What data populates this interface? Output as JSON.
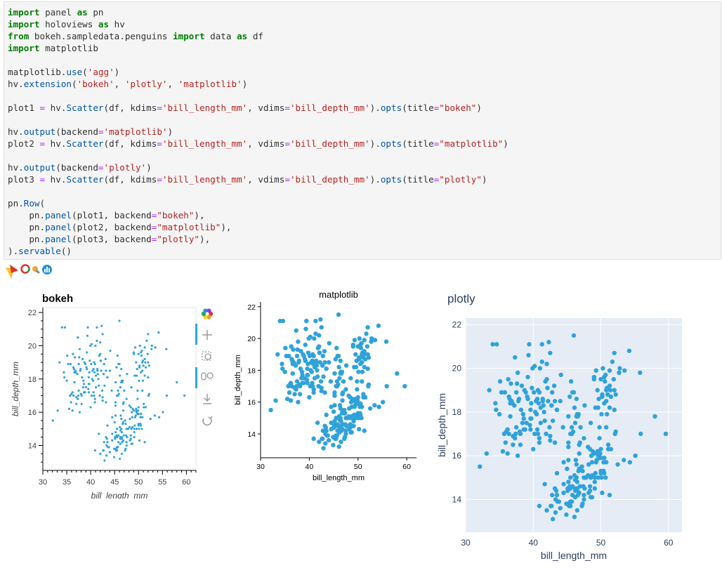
{
  "code_lines": [
    [
      [
        "kw",
        "import"
      ],
      [
        "t",
        " panel "
      ],
      [
        "kw",
        "as"
      ],
      [
        "t",
        " pn"
      ]
    ],
    [
      [
        "kw",
        "import"
      ],
      [
        "t",
        " holoviews "
      ],
      [
        "kw",
        "as"
      ],
      [
        "t",
        " hv"
      ]
    ],
    [
      [
        "kw",
        "from"
      ],
      [
        "t",
        " bokeh.sampledata.penguins "
      ],
      [
        "kw",
        "import"
      ],
      [
        "t",
        " data "
      ],
      [
        "kw",
        "as"
      ],
      [
        "t",
        " df"
      ]
    ],
    [
      [
        "kw",
        "import"
      ],
      [
        "t",
        " matplotlib"
      ]
    ],
    [],
    [
      [
        "t",
        "matplotlib."
      ],
      [
        "fn",
        "use"
      ],
      [
        "t",
        "("
      ],
      [
        "str",
        "'agg'"
      ],
      [
        "t",
        ")"
      ]
    ],
    [
      [
        "t",
        "hv."
      ],
      [
        "fn",
        "extension"
      ],
      [
        "t",
        "("
      ],
      [
        "str",
        "'bokeh'"
      ],
      [
        "t",
        ", "
      ],
      [
        "str",
        "'plotly'"
      ],
      [
        "t",
        ", "
      ],
      [
        "str",
        "'matplotlib'"
      ],
      [
        "t",
        ")"
      ]
    ],
    [],
    [
      [
        "t",
        "plot1 "
      ],
      [
        "op",
        "="
      ],
      [
        "t",
        " hv."
      ],
      [
        "fn",
        "Scatter"
      ],
      [
        "t",
        "(df, kdims"
      ],
      [
        "op",
        "="
      ],
      [
        "str",
        "'bill_length_mm'"
      ],
      [
        "t",
        ", vdims"
      ],
      [
        "op",
        "="
      ],
      [
        "str",
        "'bill_depth_mm'"
      ],
      [
        "t",
        ")."
      ],
      [
        "fn",
        "opts"
      ],
      [
        "t",
        "(title"
      ],
      [
        "op",
        "="
      ],
      [
        "str",
        "\"bokeh\""
      ],
      [
        "t",
        ")"
      ]
    ],
    [],
    [
      [
        "t",
        "hv."
      ],
      [
        "fn",
        "output"
      ],
      [
        "t",
        "(backend"
      ],
      [
        "op",
        "="
      ],
      [
        "str",
        "'matplotlib'"
      ],
      [
        "t",
        ")"
      ]
    ],
    [
      [
        "t",
        "plot2 "
      ],
      [
        "op",
        "="
      ],
      [
        "t",
        " hv."
      ],
      [
        "fn",
        "Scatter"
      ],
      [
        "t",
        "(df, kdims"
      ],
      [
        "op",
        "="
      ],
      [
        "str",
        "'bill_length_mm'"
      ],
      [
        "t",
        ", vdims"
      ],
      [
        "op",
        "="
      ],
      [
        "str",
        "'bill_depth_mm'"
      ],
      [
        "t",
        ")."
      ],
      [
        "fn",
        "opts"
      ],
      [
        "t",
        "(title"
      ],
      [
        "op",
        "="
      ],
      [
        "str",
        "\"matplotlib\""
      ],
      [
        "t",
        ")"
      ]
    ],
    [],
    [
      [
        "t",
        "hv."
      ],
      [
        "fn",
        "output"
      ],
      [
        "t",
        "(backend"
      ],
      [
        "op",
        "="
      ],
      [
        "str",
        "'plotly'"
      ],
      [
        "t",
        ")"
      ]
    ],
    [
      [
        "t",
        "plot3 "
      ],
      [
        "op",
        "="
      ],
      [
        "t",
        " hv."
      ],
      [
        "fn",
        "Scatter"
      ],
      [
        "t",
        "(df, kdims"
      ],
      [
        "op",
        "="
      ],
      [
        "str",
        "'bill_length_mm'"
      ],
      [
        "t",
        ", vdims"
      ],
      [
        "op",
        "="
      ],
      [
        "str",
        "'bill_depth_mm'"
      ],
      [
        "t",
        ")."
      ],
      [
        "fn",
        "opts"
      ],
      [
        "t",
        "(title"
      ],
      [
        "op",
        "="
      ],
      [
        "str",
        "\"plotly\""
      ],
      [
        "t",
        ")"
      ]
    ],
    [],
    [
      [
        "t",
        "pn."
      ],
      [
        "fn",
        "Row"
      ],
      [
        "t",
        "("
      ]
    ],
    [
      [
        "t",
        "    pn."
      ],
      [
        "fn",
        "panel"
      ],
      [
        "t",
        "(plot1, backend"
      ],
      [
        "op",
        "="
      ],
      [
        "str",
        "\"bokeh\""
      ],
      [
        "t",
        "),"
      ]
    ],
    [
      [
        "t",
        "    pn."
      ],
      [
        "fn",
        "panel"
      ],
      [
        "t",
        "(plot2, backend"
      ],
      [
        "op",
        "="
      ],
      [
        "str",
        "\"matplotlib\""
      ],
      [
        "t",
        "),"
      ]
    ],
    [
      [
        "t",
        "    pn."
      ],
      [
        "fn",
        "panel"
      ],
      [
        "t",
        "(plot3, backend"
      ],
      [
        "op",
        "="
      ],
      [
        "str",
        "\"plotly\""
      ],
      [
        "t",
        "),"
      ]
    ],
    [
      [
        "t",
        ")."
      ],
      [
        "fn",
        "servable"
      ],
      [
        "t",
        "()"
      ]
    ]
  ],
  "colors": {
    "keyword": "#008000",
    "function": "#0055aa",
    "string": "#ba2121",
    "operator": "#aa22ff",
    "bokeh_point": "#30a2da",
    "plotly_bg": "#e5ecf6",
    "plotly_text": "#2a3f5f"
  },
  "bokeh_toolbar": {
    "icons": [
      "bokeh-logo-icon",
      "pan-icon",
      "box-zoom-icon",
      "wheel-zoom-icon",
      "save-icon",
      "reset-icon"
    ]
  },
  "chart_data": [
    {
      "type": "scatter",
      "backend": "bokeh",
      "title": "bokeh",
      "xlabel": "bill_length_mm",
      "ylabel": "bill_depth_mm",
      "xlim": [
        30,
        62
      ],
      "ylim": [
        12.5,
        22.3
      ],
      "xticks": [
        30,
        35,
        40,
        45,
        50,
        55,
        60
      ],
      "yticks": [
        14,
        16,
        18,
        20,
        22
      ],
      "grid": false
    },
    {
      "type": "scatter",
      "backend": "matplotlib",
      "title": "matplotlib",
      "xlabel": "bill_length_mm",
      "ylabel": "bill_depth_mm",
      "xlim": [
        30,
        62
      ],
      "ylim": [
        12.5,
        22.3
      ],
      "xticks": [
        30,
        40,
        50,
        60
      ],
      "yticks": [
        14,
        16,
        18,
        20,
        22
      ],
      "grid": false
    },
    {
      "type": "scatter",
      "backend": "plotly",
      "title": "plotly",
      "xlabel": "bill_length_mm",
      "ylabel": "bill_depth_mm",
      "xlim": [
        30,
        62
      ],
      "ylim": [
        12.5,
        22.3
      ],
      "xticks": [
        30,
        40,
        50,
        60
      ],
      "yticks": [
        14,
        16,
        18,
        20,
        22
      ],
      "grid": true
    }
  ],
  "points": [
    [
      34.0,
      21.1
    ],
    [
      35.8,
      18.9
    ],
    [
      36.5,
      18.6
    ],
    [
      36.9,
      18.4
    ],
    [
      37.2,
      18.3
    ],
    [
      37.8,
      18.5
    ],
    [
      38.2,
      18.1
    ],
    [
      38.6,
      17.7
    ],
    [
      38.9,
      18.9
    ],
    [
      39.1,
      18.7
    ],
    [
      39.3,
      20.6
    ],
    [
      39.5,
      17.4
    ],
    [
      39.6,
      17.7
    ],
    [
      40.3,
      18.0
    ],
    [
      40.6,
      18.6
    ],
    [
      40.9,
      18.9
    ],
    [
      41.1,
      18.2
    ],
    [
      41.4,
      18.5
    ],
    [
      41.8,
      19.4
    ],
    [
      42.0,
      20.2
    ],
    [
      42.3,
      21.2
    ],
    [
      42.5,
      20.7
    ],
    [
      42.9,
      17.6
    ],
    [
      43.2,
      18.5
    ],
    [
      36.0,
      17.1
    ],
    [
      36.4,
      17.0
    ],
    [
      36.7,
      19.3
    ],
    [
      37.0,
      16.9
    ],
    [
      37.3,
      20.5
    ],
    [
      37.6,
      19.3
    ],
    [
      37.7,
      16.0
    ],
    [
      38.1,
      17.0
    ],
    [
      38.5,
      17.9
    ],
    [
      38.8,
      17.2
    ],
    [
      39.0,
      17.5
    ],
    [
      39.2,
      19.6
    ],
    [
      39.4,
      21.1
    ],
    [
      39.7,
      18.4
    ],
    [
      40.1,
      18.9
    ],
    [
      40.2,
      17.0
    ],
    [
      40.5,
      17.9
    ],
    [
      40.7,
      17.0
    ],
    [
      40.8,
      18.4
    ],
    [
      41.0,
      20.0
    ],
    [
      41.3,
      20.3
    ],
    [
      41.5,
      18.3
    ],
    [
      41.6,
      18.0
    ],
    [
      42.2,
      18.5
    ],
    [
      42.7,
      18.3
    ],
    [
      43.1,
      19.2
    ],
    [
      44.1,
      19.7
    ],
    [
      45.8,
      18.9
    ],
    [
      46.0,
      21.5
    ],
    [
      36.2,
      16.1
    ],
    [
      35.1,
      19.4
    ],
    [
      35.3,
      18.9
    ],
    [
      35.5,
      16.2
    ],
    [
      34.5,
      18.1
    ],
    [
      34.6,
      21.1
    ],
    [
      33.5,
      19.0
    ],
    [
      32.1,
      15.5
    ],
    [
      33.1,
      16.1
    ],
    [
      38.7,
      19.0
    ],
    [
      37.9,
      18.6
    ],
    [
      39.8,
      19.1
    ],
    [
      40.0,
      16.3
    ],
    [
      36.6,
      17.8
    ],
    [
      36.8,
      18.5
    ],
    [
      37.4,
      17.0
    ],
    [
      37.5,
      17.3
    ],
    [
      38.0,
      17.1
    ],
    [
      38.3,
      19.2
    ],
    [
      38.4,
      17.5
    ],
    [
      39.9,
      20.0
    ],
    [
      40.4,
      18.5
    ],
    [
      40.7,
      19.0
    ],
    [
      41.7,
      17.6
    ],
    [
      42.1,
      19.1
    ],
    [
      35.9,
      16.6
    ],
    [
      35.7,
      17.0
    ],
    [
      34.4,
      18.4
    ],
    [
      36.3,
      19.5
    ],
    [
      38.1,
      16.5
    ],
    [
      39.6,
      17.2
    ],
    [
      41.1,
      17.5
    ],
    [
      43.5,
      18.1
    ],
    [
      44.0,
      18.5
    ],
    [
      41.9,
      17.0
    ],
    [
      42.8,
      18.9
    ],
    [
      40.9,
      16.8
    ],
    [
      46.5,
      17.9
    ],
    [
      50.0,
      19.5
    ],
    [
      51.3,
      19.2
    ],
    [
      45.4,
      18.7
    ],
    [
      52.7,
      19.8
    ],
    [
      45.2,
      17.8
    ],
    [
      46.1,
      18.2
    ],
    [
      51.3,
      18.2
    ],
    [
      46.0,
      18.9
    ],
    [
      51.3,
      19.9
    ],
    [
      46.6,
      17.8
    ],
    [
      51.7,
      20.3
    ],
    [
      47.0,
      17.3
    ],
    [
      52.0,
      18.1
    ],
    [
      45.9,
      17.1
    ],
    [
      50.5,
      19.6
    ],
    [
      50.3,
      20.0
    ],
    [
      58.0,
      17.8
    ],
    [
      46.4,
      18.6
    ],
    [
      49.2,
      18.2
    ],
    [
      42.4,
      17.3
    ],
    [
      48.5,
      17.5
    ],
    [
      43.2,
      16.6
    ],
    [
      50.6,
      19.4
    ],
    [
      46.7,
      17.9
    ],
    [
      52.0,
      19.0
    ],
    [
      50.5,
      18.4
    ],
    [
      49.5,
      19.0
    ],
    [
      46.4,
      17.8
    ],
    [
      52.8,
      20.0
    ],
    [
      40.9,
      16.6
    ],
    [
      54.2,
      20.8
    ],
    [
      42.5,
      16.7
    ],
    [
      51.0,
      18.8
    ],
    [
      49.7,
      18.6
    ],
    [
      47.5,
      16.8
    ],
    [
      47.6,
      18.3
    ],
    [
      52.0,
      20.7
    ],
    [
      46.9,
      16.6
    ],
    [
      53.5,
      19.9
    ],
    [
      49.0,
      19.5
    ],
    [
      46.2,
      17.5
    ],
    [
      50.9,
      19.1
    ],
    [
      45.5,
      17.0
    ],
    [
      50.9,
      17.9
    ],
    [
      50.8,
      18.5
    ],
    [
      50.1,
      17.9
    ],
    [
      49.0,
      19.6
    ],
    [
      51.5,
      18.7
    ],
    [
      49.8,
      17.3
    ],
    [
      48.1,
      16.4
    ],
    [
      51.4,
      19.0
    ],
    [
      45.7,
      17.3
    ],
    [
      50.7,
      19.7
    ],
    [
      42.5,
      16.9
    ],
    [
      52.2,
      18.8
    ],
    [
      45.2,
      16.6
    ],
    [
      49.3,
      19.9
    ],
    [
      50.2,
      18.8
    ],
    [
      45.6,
      19.4
    ],
    [
      51.9,
      19.5
    ],
    [
      46.8,
      16.5
    ],
    [
      45.7,
      17.0
    ],
    [
      55.8,
      19.8
    ],
    [
      43.5,
      18.1
    ],
    [
      49.6,
      18.2
    ],
    [
      50.8,
      19.0
    ],
    [
      50.2,
      18.7
    ],
    [
      46.1,
      13.2
    ],
    [
      50.0,
      16.3
    ],
    [
      48.7,
      14.1
    ],
    [
      50.0,
      15.2
    ],
    [
      47.6,
      14.5
    ],
    [
      46.5,
      13.5
    ],
    [
      45.4,
      14.6
    ],
    [
      46.7,
      15.3
    ],
    [
      43.3,
      13.4
    ],
    [
      46.8,
      15.4
    ],
    [
      40.9,
      13.7
    ],
    [
      49.0,
      16.1
    ],
    [
      45.5,
      13.7
    ],
    [
      48.4,
      14.6
    ],
    [
      45.8,
      14.6
    ],
    [
      49.3,
      15.7
    ],
    [
      42.0,
      13.5
    ],
    [
      49.2,
      15.2
    ],
    [
      46.2,
      14.5
    ],
    [
      48.7,
      15.1
    ],
    [
      50.2,
      14.3
    ],
    [
      45.1,
      14.5
    ],
    [
      46.5,
      14.5
    ],
    [
      46.3,
      15.8
    ],
    [
      42.9,
      13.1
    ],
    [
      46.1,
      15.1
    ],
    [
      44.5,
      14.3
    ],
    [
      47.8,
      15.0
    ],
    [
      48.2,
      14.3
    ],
    [
      50.0,
      15.3
    ],
    [
      47.3,
      15.3
    ],
    [
      42.8,
      14.2
    ],
    [
      45.1,
      14.5
    ],
    [
      59.6,
      17.0
    ],
    [
      49.1,
      14.8
    ],
    [
      48.4,
      16.3
    ],
    [
      42.6,
      13.7
    ],
    [
      44.4,
      17.3
    ],
    [
      44.0,
      13.6
    ],
    [
      48.7,
      15.7
    ],
    [
      42.7,
      13.7
    ],
    [
      49.6,
      16.0
    ],
    [
      45.3,
      13.7
    ],
    [
      49.6,
      15.0
    ],
    [
      50.5,
      15.9
    ],
    [
      43.6,
      13.9
    ],
    [
      45.5,
      13.9
    ],
    [
      50.5,
      15.9
    ],
    [
      44.9,
      13.3
    ],
    [
      45.2,
      15.8
    ],
    [
      46.6,
      14.2
    ],
    [
      48.5,
      14.1
    ],
    [
      45.1,
      14.4
    ],
    [
      50.1,
      15.0
    ],
    [
      46.5,
      14.4
    ],
    [
      45.0,
      15.4
    ],
    [
      43.8,
      13.9
    ],
    [
      45.5,
      15.0
    ],
    [
      43.2,
      14.5
    ],
    [
      50.4,
      15.3
    ],
    [
      45.3,
      13.8
    ],
    [
      46.2,
      14.9
    ],
    [
      45.7,
      13.9
    ],
    [
      54.3,
      15.7
    ],
    [
      45.8,
      14.2
    ],
    [
      49.8,
      16.8
    ],
    [
      46.2,
      14.4
    ],
    [
      49.5,
      16.2
    ],
    [
      43.5,
      14.2
    ],
    [
      50.7,
      15.0
    ],
    [
      47.7,
      15.0
    ],
    [
      46.4,
      15.6
    ],
    [
      48.2,
      15.6
    ],
    [
      46.5,
      14.8
    ],
    [
      46.4,
      15.0
    ],
    [
      48.6,
      16.0
    ],
    [
      47.5,
      14.2
    ],
    [
      51.1,
      16.3
    ],
    [
      45.2,
      13.8
    ],
    [
      45.2,
      16.4
    ],
    [
      49.1,
      14.5
    ],
    [
      52.5,
      15.6
    ],
    [
      47.4,
      14.6
    ],
    [
      50.0,
      15.9
    ],
    [
      44.9,
      13.8
    ],
    [
      50.8,
      17.3
    ],
    [
      43.4,
      14.4
    ],
    [
      51.3,
      14.2
    ],
    [
      47.5,
      14.0
    ],
    [
      52.1,
      17.0
    ],
    [
      47.5,
      15.0
    ],
    [
      52.2,
      17.1
    ],
    [
      45.5,
      14.5
    ],
    [
      49.5,
      16.1
    ],
    [
      44.5,
      14.7
    ],
    [
      50.8,
      15.7
    ],
    [
      49.4,
      15.8
    ],
    [
      46.9,
      14.6
    ],
    [
      48.4,
      14.4
    ],
    [
      51.1,
      16.5
    ],
    [
      48.5,
      15.0
    ],
    [
      55.9,
      17.0
    ],
    [
      47.2,
      15.5
    ],
    [
      49.1,
      15.0
    ],
    [
      47.3,
      13.8
    ],
    [
      46.8,
      16.1
    ],
    [
      41.7,
      14.7
    ],
    [
      53.4,
      15.8
    ],
    [
      43.3,
      14.0
    ],
    [
      48.1,
      15.1
    ],
    [
      50.5,
      15.2
    ],
    [
      49.8,
      15.9
    ],
    [
      43.5,
      15.2
    ],
    [
      51.5,
      16.3
    ],
    [
      46.2,
      14.1
    ],
    [
      55.1,
      16.0
    ],
    [
      44.5,
      15.7
    ],
    [
      48.8,
      16.2
    ],
    [
      47.2,
      13.7
    ],
    [
      46.8,
      14.3
    ],
    [
      50.4,
      15.7
    ],
    [
      45.2,
      14.8
    ],
    [
      49.9,
      16.1
    ],
    [
      37.3,
      16.8
    ],
    [
      36.6,
      18.4
    ],
    [
      38.6,
      17.2
    ],
    [
      37.0,
      16.5
    ],
    [
      42.7,
      18.3
    ],
    [
      41.3,
      21.1
    ],
    [
      40.6,
      17.2
    ],
    [
      41.4,
      18.6
    ],
    [
      36.2,
      17.2
    ],
    [
      42.1,
      19.1
    ],
    [
      39.6,
      18.1
    ],
    [
      37.7,
      19.8
    ],
    [
      40.2,
      20.1
    ],
    [
      42.0,
      19.5
    ],
    [
      39.7,
      17.7
    ],
    [
      37.5,
      18.9
    ],
    [
      36.4,
      18.7
    ],
    [
      35.0,
      17.9
    ],
    [
      39.2,
      18.6
    ]
  ]
}
